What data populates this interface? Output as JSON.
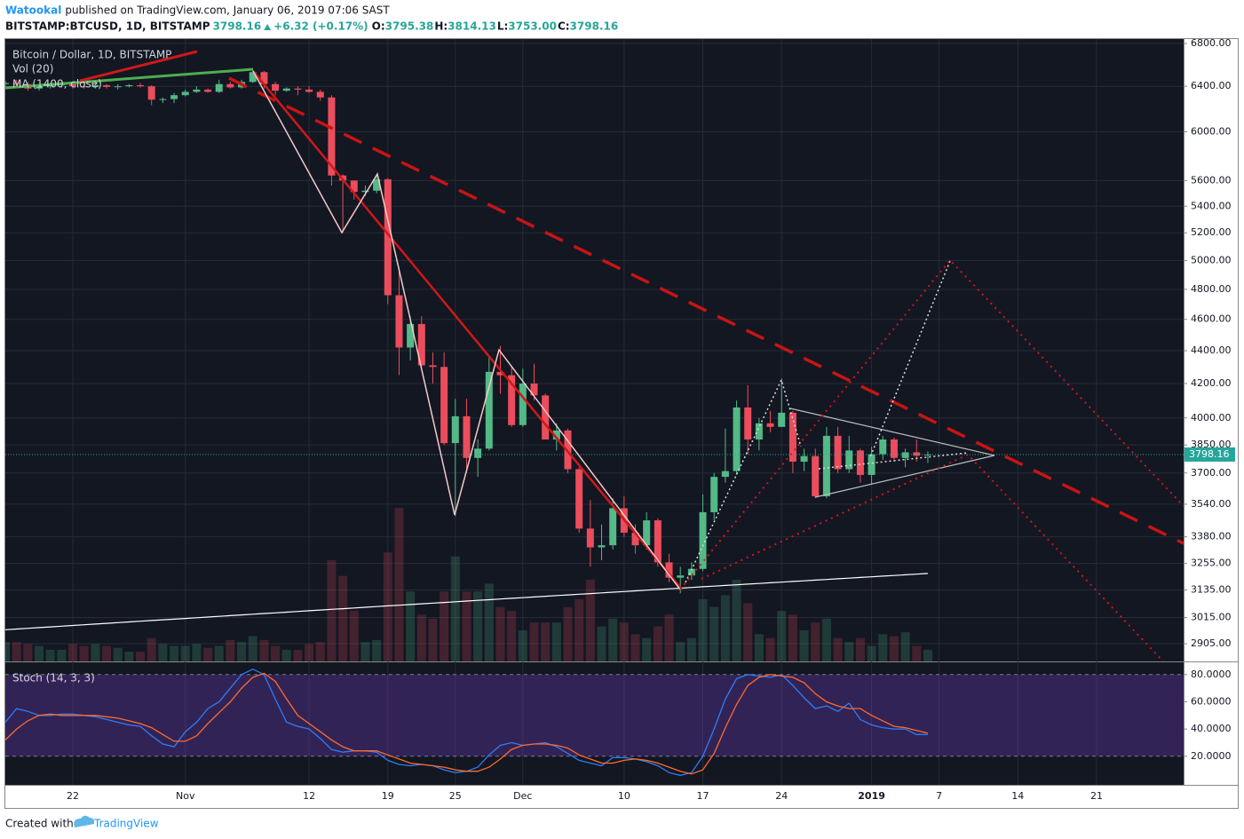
{
  "header": {
    "author": "Watookal",
    "published": "published on TradingView.com, January 06, 2019 07:06 SAST",
    "symbol": "BITSTAMP:BTCUSD, 1D, BITSTAMP",
    "last": "3798.16",
    "change": "+6.32 (+0.17%)",
    "ohlc": [
      {
        "key": "O:",
        "value": "3795.38"
      },
      {
        "key": "H:",
        "value": "3814.13"
      },
      {
        "key": "L:",
        "value": "3753.00"
      },
      {
        "key": "C:",
        "value": "3798.16"
      }
    ]
  },
  "chart_data": {
    "type": "candlestick",
    "title": "Bitcoin / Dollar, 1D, BITSTAMP",
    "categories": [
      null,
      null,
      null,
      null,
      null,
      null,
      "22",
      null,
      null,
      null,
      null,
      null,
      null,
      null,
      null,
      null,
      "Nov",
      null,
      null,
      null,
      null,
      null,
      null,
      null,
      null,
      null,
      null,
      "12",
      null,
      null,
      null,
      null,
      null,
      null,
      "19",
      null,
      null,
      null,
      null,
      null,
      "25",
      null,
      null,
      null,
      null,
      null,
      "Dec",
      null,
      null,
      null,
      null,
      null,
      null,
      null,
      null,
      "10",
      null,
      null,
      null,
      null,
      null,
      null,
      "17",
      null,
      null,
      null,
      null,
      null,
      null,
      "24",
      null,
      null,
      null,
      null,
      null,
      null,
      null,
      "2019",
      null,
      null,
      null,
      null,
      null,
      "7",
      null,
      null,
      null,
      null,
      null,
      null,
      "14",
      null,
      null,
      null,
      null,
      null,
      null,
      "21",
      null,
      null,
      null,
      null,
      null,
      null,
      null
    ],
    "open": [
      6420,
      6430,
      6420,
      6380,
      6400,
      6410,
      6420,
      6400,
      6395,
      6410,
      6395,
      6400,
      6410,
      6400,
      6280,
      6285,
      6320,
      6350,
      6370,
      6350,
      6420,
      6390,
      6440,
      6530,
      6420,
      6360,
      6380,
      6370,
      6350,
      6300,
      5640,
      5600,
      5510,
      5520,
      5610,
      4760,
      4420,
      4570,
      4310,
      4300,
      3860,
      4010,
      3780,
      3830,
      4270,
      4250,
      3960,
      4200,
      4130,
      3880,
      3930,
      3720,
      3420,
      3330,
      3340,
      3520,
      3400,
      3340,
      3460,
      3260,
      3190,
      3200,
      3230,
      3500,
      3680,
      3710,
      4060,
      3880,
      3970,
      3950,
      4030,
      3760,
      3790,
      3580,
      3900,
      3720,
      3820,
      3690,
      3800,
      3880,
      3780,
      3810,
      3795.38,
      null,
      null,
      null,
      null,
      null,
      null,
      null,
      null,
      null,
      null,
      null,
      null,
      null,
      null,
      null,
      null,
      null,
      null,
      null,
      null,
      null,
      null
    ],
    "high": [
      6450,
      6460,
      6440,
      6420,
      6430,
      6440,
      6440,
      6420,
      6440,
      6420,
      6420,
      6420,
      6430,
      6410,
      6300,
      6340,
      6370,
      6400,
      6380,
      6460,
      6440,
      6460,
      6550,
      6540,
      6440,
      6390,
      6400,
      6400,
      6370,
      6320,
      5650,
      5600,
      5560,
      5640,
      5620,
      4950,
      4620,
      4620,
      4390,
      4390,
      4110,
      4110,
      3880,
      4370,
      4430,
      4300,
      4290,
      4320,
      4140,
      3970,
      3940,
      3730,
      3560,
      3440,
      3570,
      3580,
      3440,
      3500,
      3470,
      3300,
      3240,
      3260,
      3590,
      3700,
      3940,
      4100,
      4190,
      4000,
      4040,
      4230,
      4040,
      3830,
      3830,
      3950,
      3950,
      3900,
      3830,
      3840,
      3900,
      3890,
      3830,
      3880,
      3814.13,
      null,
      null,
      null,
      null,
      null,
      null,
      null,
      null,
      null,
      null,
      null,
      null,
      null,
      null,
      null,
      null,
      null,
      null,
      null,
      null,
      null,
      null
    ],
    "low": [
      6380,
      6390,
      6360,
      6360,
      6380,
      6390,
      6380,
      6380,
      6380,
      6380,
      6370,
      6390,
      6390,
      6230,
      6250,
      6250,
      6310,
      6340,
      6340,
      6340,
      6380,
      6380,
      6430,
      6380,
      6320,
      6350,
      6320,
      6340,
      6270,
      5560,
      5200,
      5450,
      5480,
      5500,
      4700,
      4250,
      4340,
      4300,
      4200,
      3850,
      3480,
      3700,
      3680,
      3820,
      4140,
      3950,
      3950,
      4100,
      3880,
      3820,
      3700,
      3400,
      3240,
      3270,
      3320,
      3380,
      3300,
      3320,
      3240,
      3170,
      3120,
      3180,
      3220,
      3460,
      3650,
      3690,
      3800,
      3820,
      3920,
      3950,
      3700,
      3710,
      3570,
      3570,
      3700,
      3700,
      3650,
      3640,
      3770,
      3760,
      3730,
      3760,
      3753,
      null,
      null,
      null,
      null,
      null,
      null,
      null,
      null,
      null,
      null,
      null,
      null,
      null,
      null,
      null,
      null,
      null,
      null,
      null,
      null,
      null,
      null
    ],
    "close": [
      6430,
      6420,
      6380,
      6400,
      6410,
      6420,
      6400,
      6395,
      6410,
      6395,
      6400,
      6410,
      6400,
      6280,
      6285,
      6320,
      6350,
      6370,
      6350,
      6420,
      6390,
      6440,
      6530,
      6420,
      6360,
      6380,
      6370,
      6350,
      6300,
      5640,
      5600,
      5510,
      5520,
      5610,
      4760,
      4420,
      4570,
      4310,
      4300,
      3860,
      4010,
      3780,
      3830,
      4270,
      4250,
      3960,
      4200,
      4130,
      3880,
      3930,
      3720,
      3420,
      3330,
      3340,
      3520,
      3400,
      3340,
      3460,
      3260,
      3190,
      3200,
      3230,
      3500,
      3680,
      3710,
      4060,
      3880,
      3970,
      3950,
      4030,
      3760,
      3790,
      3580,
      3900,
      3720,
      3820,
      3690,
      3800,
      3880,
      3780,
      3810,
      3791.84,
      3798.16,
      null,
      null,
      null,
      null,
      null,
      null,
      null,
      null,
      null,
      null,
      null,
      null,
      null,
      null,
      null,
      null,
      null,
      null,
      null,
      null,
      null,
      null
    ],
    "up_color": "#53b987",
    "down_color": "#eb4d5c",
    "ylim": [
      2833,
      6843
    ],
    "log_scale": true,
    "grid": true,
    "yticks": [
      {
        "value": 6800,
        "label": "6800.00"
      },
      {
        "value": 6400,
        "label": "6400.00"
      },
      {
        "value": 6000,
        "label": "6000.00"
      },
      {
        "value": 5600,
        "label": "5600.00"
      },
      {
        "value": 5400,
        "label": "5400.00"
      },
      {
        "value": 5200,
        "label": "5200.00"
      },
      {
        "value": 5000,
        "label": "5000.00"
      },
      {
        "value": 4800,
        "label": "4800.00"
      },
      {
        "value": 4600,
        "label": "4600.00"
      },
      {
        "value": 4400,
        "label": "4400.00"
      },
      {
        "value": 4200,
        "label": "4200.00"
      },
      {
        "value": 4000,
        "label": "4000.00"
      },
      {
        "value": 3850,
        "label": "3850.00"
      },
      {
        "value": 3700,
        "label": "3700.00"
      },
      {
        "value": 3540,
        "label": "3540.00"
      },
      {
        "value": 3380,
        "label": "3380.00"
      },
      {
        "value": 3255,
        "label": "3255.00"
      },
      {
        "value": 3135,
        "label": "3135.00"
      },
      {
        "value": 3015,
        "label": "3015.00"
      },
      {
        "value": 2905,
        "label": "2905.00"
      }
    ],
    "volume": {
      "name": "Vol (20)",
      "vlim": [
        0,
        160000
      ],
      "values": [
        5000,
        5000,
        4500,
        4000,
        3000,
        3000,
        4500,
        4000,
        4500,
        4000,
        3500,
        2500,
        2500,
        6000,
        4500,
        4000,
        4000,
        4500,
        3500,
        4000,
        5500,
        5000,
        6500,
        5500,
        4000,
        3000,
        3000,
        4500,
        5000,
        26000,
        22000,
        13000,
        5000,
        5500,
        28000,
        39500,
        18000,
        12000,
        11000,
        18000,
        27000,
        18000,
        18000,
        20000,
        14000,
        13000,
        8000,
        10000,
        10000,
        10000,
        14000,
        16000,
        21000,
        9000,
        11000,
        10000,
        7000,
        6000,
        9000,
        12000,
        5000,
        6000,
        16000,
        14000,
        17000,
        21000,
        15000,
        7000,
        6000,
        13000,
        12000,
        8000,
        10000,
        11000,
        6000,
        5000,
        6000,
        4000,
        7000,
        6500,
        7500,
        4000,
        3000,
        null,
        null,
        null,
        null,
        null,
        null,
        null,
        null,
        null,
        null,
        null,
        null,
        null,
        null,
        null,
        null,
        null,
        null,
        null,
        null,
        null,
        null
      ]
    },
    "ma": {
      "name": "MA (1400, close)",
      "color": "#ffffff",
      "values": [
        2963,
        2966,
        2969,
        2972,
        2975,
        2978,
        2981,
        2984,
        2987,
        2990,
        2993,
        2996,
        2999,
        3002,
        3005,
        3008,
        3011,
        3014,
        3017,
        3020,
        3023,
        3026,
        3029,
        3032,
        3035,
        3038,
        3041,
        3044,
        3047,
        3050,
        3053,
        3056,
        3059,
        3062,
        3065,
        3068,
        3071,
        3074,
        3077,
        3080,
        3083,
        3086,
        3089,
        3092,
        3095,
        3098,
        3101,
        3104,
        3107,
        3110,
        3113,
        3116,
        3119,
        3122,
        3125,
        3128,
        3131,
        3134,
        3137,
        3140,
        3143,
        3146,
        3149,
        3152,
        3155,
        3158,
        3161,
        3164,
        3167,
        3170,
        3173,
        3176,
        3179,
        3182,
        3185,
        3188,
        3191,
        3194,
        3197,
        3200,
        3203,
        3206,
        3209,
        null,
        null,
        null,
        null,
        null,
        null,
        null,
        null,
        null,
        null,
        null,
        null,
        null,
        null,
        null,
        null,
        null,
        null,
        null,
        null,
        null,
        null
      ]
    },
    "stoch": {
      "name": "Stoch (14, 3, 3)",
      "ylim": [
        -1,
        89
      ],
      "band": [
        20,
        80
      ],
      "band_color": "#7b3fd1",
      "yticks": [
        {
          "value": 80,
          "label": "80.0000"
        },
        {
          "value": 60,
          "label": "60.0000"
        },
        {
          "value": 40,
          "label": "40.0000"
        },
        {
          "value": 20,
          "label": "20.0000"
        }
      ],
      "series": [
        {
          "color": "#2f7cf6",
          "values": [
            45,
            55,
            53,
            50,
            50,
            51,
            51,
            50,
            49,
            47,
            45,
            43,
            42,
            35,
            29,
            27,
            38,
            45,
            55,
            60,
            70,
            80,
            84,
            80,
            62,
            45,
            42,
            40,
            33,
            25,
            23,
            24,
            24,
            23,
            17,
            14,
            13,
            14,
            13,
            10,
            8,
            9,
            12,
            21,
            28,
            30,
            28,
            29,
            30,
            27,
            22,
            17,
            15,
            13,
            19,
            19,
            18,
            16,
            13,
            8,
            6,
            8,
            20,
            40,
            62,
            77,
            80,
            79,
            78,
            80,
            72,
            63,
            55,
            57,
            53,
            59,
            47,
            43,
            41,
            40,
            40,
            36,
            36,
            null,
            null,
            null,
            null,
            null,
            null,
            null,
            null,
            null,
            null,
            null,
            null,
            null,
            null,
            null,
            null,
            null,
            null,
            null,
            null,
            null,
            null
          ]
        },
        {
          "color": "#ff6a2a",
          "values": [
            32,
            40,
            46,
            50,
            51,
            50,
            50,
            50,
            50,
            49,
            48,
            46,
            44,
            41,
            36,
            31,
            31,
            35,
            44,
            52,
            60,
            70,
            78,
            81,
            75,
            62,
            50,
            44,
            38,
            32,
            27,
            24,
            24,
            24,
            21,
            18,
            15,
            14,
            13,
            12,
            10,
            9,
            9,
            12,
            18,
            25,
            28,
            29,
            29,
            28,
            26,
            21,
            18,
            15,
            15,
            17,
            18,
            17,
            15,
            12,
            9,
            7,
            10,
            22,
            41,
            58,
            72,
            78,
            80,
            79,
            78,
            74,
            66,
            60,
            57,
            55,
            55,
            50,
            46,
            42,
            41,
            39,
            37,
            null,
            null,
            null,
            null,
            null,
            null,
            null,
            null,
            null,
            null,
            null,
            null,
            null,
            null,
            null,
            null,
            null,
            null,
            null,
            null,
            null,
            null
          ]
        }
      ]
    }
  },
  "footer": {
    "created": "Created with",
    "brand": "TradingView"
  }
}
